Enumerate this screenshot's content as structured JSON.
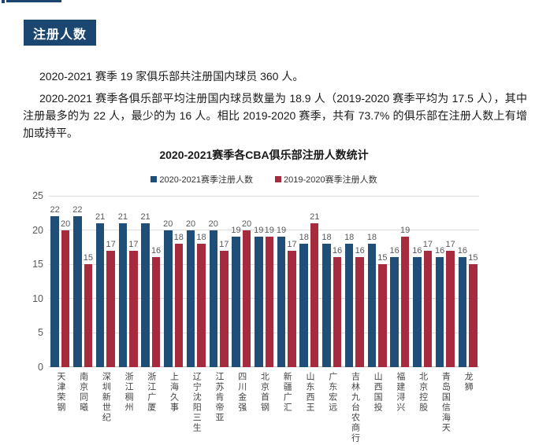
{
  "badge": {
    "label": "注册人数"
  },
  "paragraphs": {
    "p1": "2020-2021 赛季 19 家俱乐部共注册国内球员 360 人。",
    "p2": "2020-2021 赛季各俱乐部平均注册国内球员数量为 18.9 人（2019-2020 赛季平均为 17.5 人），其中注册最多的为 22 人，最少的为 16 人。相比 2019-2020 赛季，共有 73.7% 的俱乐部在注册人数上有增加或持平。"
  },
  "chart_data": {
    "type": "bar",
    "title": "2020-2021赛季各CBA俱乐部注册人数统计",
    "categories": [
      "天津荣钢",
      "南京同曦",
      "深圳新世纪",
      "浙江稠州",
      "浙江广厦",
      "上海久事",
      "辽宁沈阳三生",
      "江苏肯帝亚",
      "四川金强",
      "北京首钢",
      "新疆广汇",
      "山东西王",
      "广东宏远",
      "吉林九台农商行",
      "山西国投",
      "福建浔兴",
      "北京控股",
      "青岛国信海天",
      "龙狮"
    ],
    "series": [
      {
        "name": "2020-2021赛季注册人数",
        "color": "#1f4e79",
        "values": [
          22,
          22,
          21,
          21,
          21,
          20,
          20,
          20,
          19,
          19,
          19,
          18,
          18,
          18,
          18,
          16,
          16,
          16,
          16
        ]
      },
      {
        "name": "2019-2020赛季注册人数",
        "color": "#a62b3f",
        "values": [
          20,
          15,
          17,
          17,
          16,
          18,
          18,
          17,
          20,
          19,
          17,
          21,
          16,
          16,
          15,
          19,
          17,
          17,
          15
        ]
      }
    ],
    "ylim": [
      0,
      25
    ],
    "yticks": [
      0,
      5,
      10,
      15,
      20,
      25
    ],
    "grid": true,
    "legend_position": "top",
    "xlabel": "",
    "ylabel": ""
  },
  "colors": {
    "navy": "#1b4670",
    "bar_blue": "#1f4e79",
    "bar_red": "#a62b3f",
    "gridline": "#dcdcdc",
    "axis_line": "#bfbfbf",
    "tick_text": "#595959",
    "category_text": "#444444"
  }
}
